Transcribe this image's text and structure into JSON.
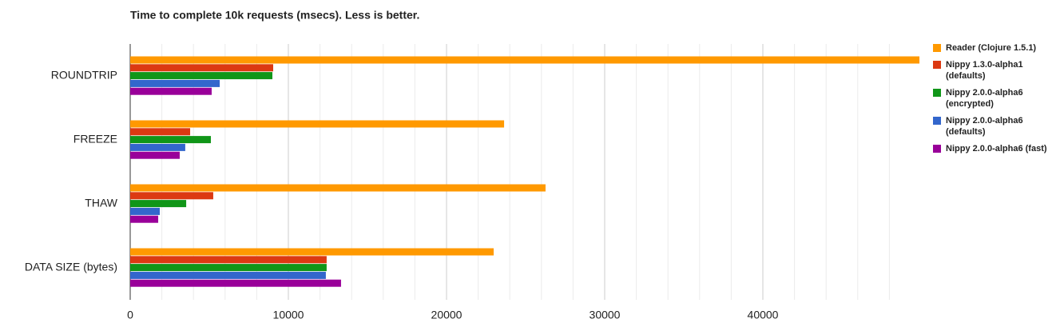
{
  "chart_data": {
    "type": "hbar",
    "title": "Time to complete 10k requests (msecs). Less is better.",
    "categories": [
      "ROUNDTRIP",
      "FREEZE",
      "THAW",
      "DATA SIZE (bytes)"
    ],
    "series": [
      {
        "name": "Reader (Clojure 1.5.1)",
        "color": "#ff9900",
        "values": [
          49900,
          23640,
          26260,
          22980
        ]
      },
      {
        "name": "Nippy 1.3.0-alpha1 (defaults)",
        "color": "#dc3912",
        "values": [
          9040,
          3790,
          5250,
          12420
        ]
      },
      {
        "name": "Nippy 2.0.0-alpha6 (encrypted)",
        "color": "#109618",
        "values": [
          8990,
          5100,
          3540,
          12420
        ]
      },
      {
        "name": "Nippy 2.0.0-alpha6 (defaults)",
        "color": "#3366cc",
        "values": [
          5660,
          3480,
          1870,
          12370
        ]
      },
      {
        "name": "Nippy 2.0.0-alpha6 (fast)",
        "color": "#990099",
        "values": [
          5150,
          3130,
          1770,
          13330
        ]
      }
    ],
    "xlim": [
      0,
      50000
    ],
    "xticks": [
      0,
      10000,
      20000,
      30000,
      40000
    ],
    "xminor_ticks": [
      2000,
      4000,
      6000,
      8000,
      12000,
      14000,
      16000,
      18000,
      22000,
      24000,
      26000,
      28000,
      32000,
      34000,
      36000,
      38000,
      42000,
      44000,
      46000,
      48000
    ],
    "grid": true,
    "legend": "right"
  }
}
